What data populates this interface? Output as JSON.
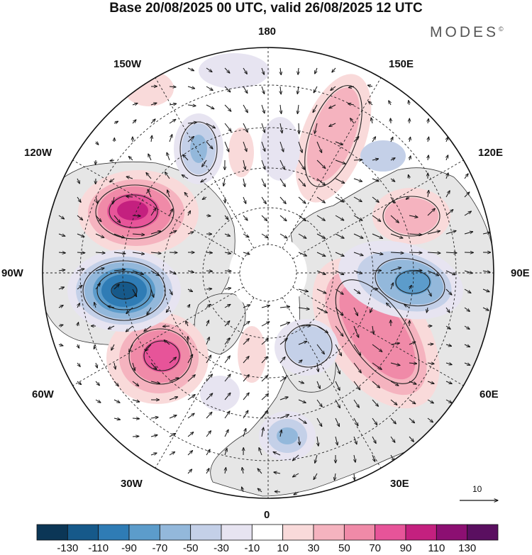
{
  "title": "Base 20/08/2025 00 UTC, valid 26/08/2025 12 UTC",
  "brand": "MODES",
  "brand_mark": "©",
  "longitude_labels": {
    "lon_180": "180",
    "lon_150e": "150E",
    "lon_120e": "120E",
    "lon_90e": "90E",
    "lon_60e": "60E",
    "lon_30e": "30E",
    "lon_0": "0",
    "lon_30w": "30W",
    "lon_60w": "60W",
    "lon_90w": "90W",
    "lon_120w": "120W",
    "lon_150w": "150W"
  },
  "reference_vector_value": "10",
  "colorbar": {
    "ticks": [
      "-130",
      "-110",
      "-90",
      "-70",
      "-50",
      "-30",
      "-10",
      "10",
      "30",
      "50",
      "70",
      "90",
      "110",
      "130"
    ],
    "colors": [
      "#0b3656",
      "#16598a",
      "#2f7cb5",
      "#5c9ccb",
      "#93b8db",
      "#c4d0e8",
      "#e7e4f1",
      "#ffffff",
      "#f9dada",
      "#f5b3bf",
      "#f08aa8",
      "#e75499",
      "#c4207f",
      "#8c0f72",
      "#5a0f60"
    ]
  },
  "colors": {
    "land": "#e6e6e6",
    "coast": "#333333",
    "grid": "#222222"
  }
}
